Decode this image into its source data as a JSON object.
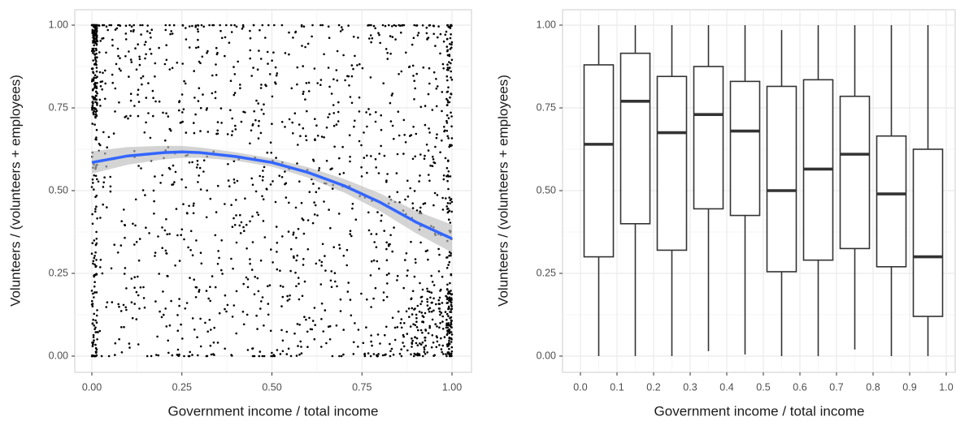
{
  "chart_data": [
    {
      "type": "scatter",
      "xlabel": "Government income / total income",
      "ylabel": "Volunteers / (volunteers + employees)",
      "xlim": [
        0,
        1
      ],
      "ylim": [
        0,
        1
      ],
      "x_ticks": [
        "0.00",
        "0.25",
        "0.50",
        "0.75",
        "1.00"
      ],
      "y_ticks": [
        "0.00",
        "0.25",
        "0.50",
        "0.75",
        "1.00"
      ],
      "grid": true,
      "n_points": 1800,
      "point_color": "#000000",
      "smooth": {
        "color": "#3366ff",
        "band_color": "#bdbdbd",
        "x": [
          0,
          0.1,
          0.2,
          0.25,
          0.3,
          0.4,
          0.5,
          0.6,
          0.7,
          0.8,
          0.9,
          1.0
        ],
        "y": [
          0.585,
          0.605,
          0.615,
          0.617,
          0.615,
          0.603,
          0.585,
          0.555,
          0.515,
          0.465,
          0.405,
          0.355
        ]
      }
    },
    {
      "type": "box",
      "xlabel": "Government income / total income",
      "ylabel": "Volunteers / (volunteers + employees)",
      "xlim": [
        0,
        1
      ],
      "ylim": [
        0,
        1
      ],
      "x_ticks": [
        "0.0",
        "0.1",
        "0.2",
        "0.3",
        "0.4",
        "0.5",
        "0.6",
        "0.7",
        "0.8",
        "0.9",
        "1.0"
      ],
      "y_ticks": [
        "0.00",
        "0.25",
        "0.50",
        "0.75",
        "1.00"
      ],
      "grid": true,
      "boxes": [
        {
          "x": 0.05,
          "min": 0.0,
          "q1": 0.3,
          "median": 0.64,
          "q3": 0.88,
          "max": 1.0
        },
        {
          "x": 0.15,
          "min": 0.0,
          "q1": 0.4,
          "median": 0.77,
          "q3": 0.915,
          "max": 1.0
        },
        {
          "x": 0.25,
          "min": 0.0,
          "q1": 0.32,
          "median": 0.675,
          "q3": 0.845,
          "max": 1.0
        },
        {
          "x": 0.35,
          "min": 0.015,
          "q1": 0.445,
          "median": 0.73,
          "q3": 0.875,
          "max": 1.0
        },
        {
          "x": 0.45,
          "min": 0.005,
          "q1": 0.425,
          "median": 0.68,
          "q3": 0.83,
          "max": 1.0
        },
        {
          "x": 0.55,
          "min": 0.0,
          "q1": 0.255,
          "median": 0.5,
          "q3": 0.815,
          "max": 0.985
        },
        {
          "x": 0.65,
          "min": 0.0,
          "q1": 0.29,
          "median": 0.565,
          "q3": 0.835,
          "max": 1.0
        },
        {
          "x": 0.75,
          "min": 0.02,
          "q1": 0.325,
          "median": 0.61,
          "q3": 0.785,
          "max": 1.0
        },
        {
          "x": 0.85,
          "min": 0.0,
          "q1": 0.27,
          "median": 0.49,
          "q3": 0.665,
          "max": 1.0
        },
        {
          "x": 0.95,
          "min": 0.0,
          "q1": 0.12,
          "median": 0.3,
          "q3": 0.625,
          "max": 1.0
        }
      ]
    }
  ]
}
